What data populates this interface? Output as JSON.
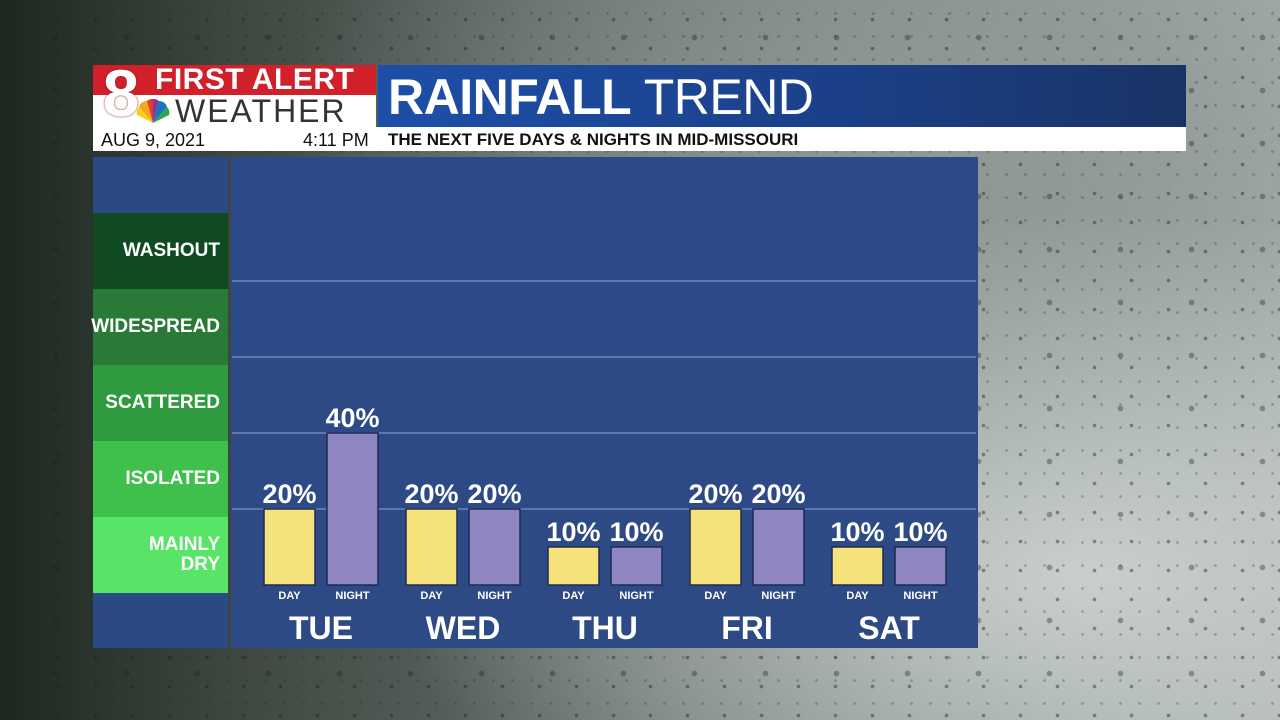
{
  "header": {
    "logo_number": "8",
    "logo_line1": "FIRST ALERT",
    "logo_line2": "WEATHER",
    "title_bold": "RAINFALL",
    "title_light": "TREND",
    "date": "AUG 9, 2021",
    "time": "4:11 PM",
    "caption": "THE NEXT FIVE DAYS & NIGHTS IN MID-MISSOURI"
  },
  "legend": {
    "categories": [
      {
        "label": "WASHOUT",
        "color": "#0f4a22"
      },
      {
        "label": "WIDESPREAD",
        "color": "#287a36"
      },
      {
        "label": "SCATTERED",
        "color": "#2f9a3f"
      },
      {
        "label": "ISOLATED",
        "color": "#3fc04c"
      },
      {
        "label": "MAINLY DRY",
        "color": "#58e466"
      }
    ]
  },
  "colors": {
    "day_bar": "#f6e27a",
    "night_bar": "#8f85c0"
  },
  "chart_data": {
    "type": "bar",
    "categories": [
      "TUE",
      "WED",
      "THU",
      "FRI",
      "SAT"
    ],
    "series": [
      {
        "name": "DAY",
        "values": [
          20,
          20,
          10,
          20,
          10
        ]
      },
      {
        "name": "NIGHT",
        "values": [
          40,
          20,
          10,
          20,
          10
        ]
      }
    ],
    "ylim": [
      0,
      100
    ],
    "value_suffix": "%",
    "grid": true
  }
}
